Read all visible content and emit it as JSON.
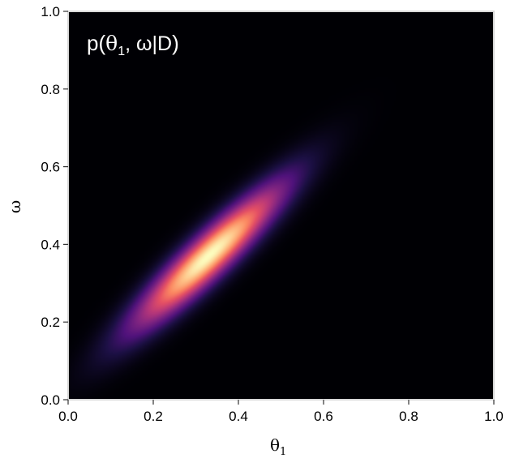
{
  "chart_data": {
    "type": "heatmap",
    "title": "",
    "annotation": {
      "prefix": "p(",
      "theta": "θ",
      "theta_sub": "1",
      "rest": ", ω|D",
      "suffix": ")"
    },
    "xlabel": {
      "symbol": "θ",
      "subscript": "1"
    },
    "ylabel": "ω",
    "xlim": [
      0.0,
      1.0
    ],
    "ylim": [
      0.0,
      1.0
    ],
    "x_ticks": [
      "0.0",
      "0.2",
      "0.4",
      "0.6",
      "0.8",
      "1.0"
    ],
    "y_ticks": [
      "0.0",
      "0.2",
      "0.4",
      "0.6",
      "0.8",
      "1.0"
    ],
    "colormap": "magma",
    "grid": false,
    "density": {
      "peak_theta1": 0.33,
      "peak_omega": 0.37,
      "sd_theta1": 0.11,
      "sd_omega": 0.115,
      "correlation": 0.92
    }
  }
}
